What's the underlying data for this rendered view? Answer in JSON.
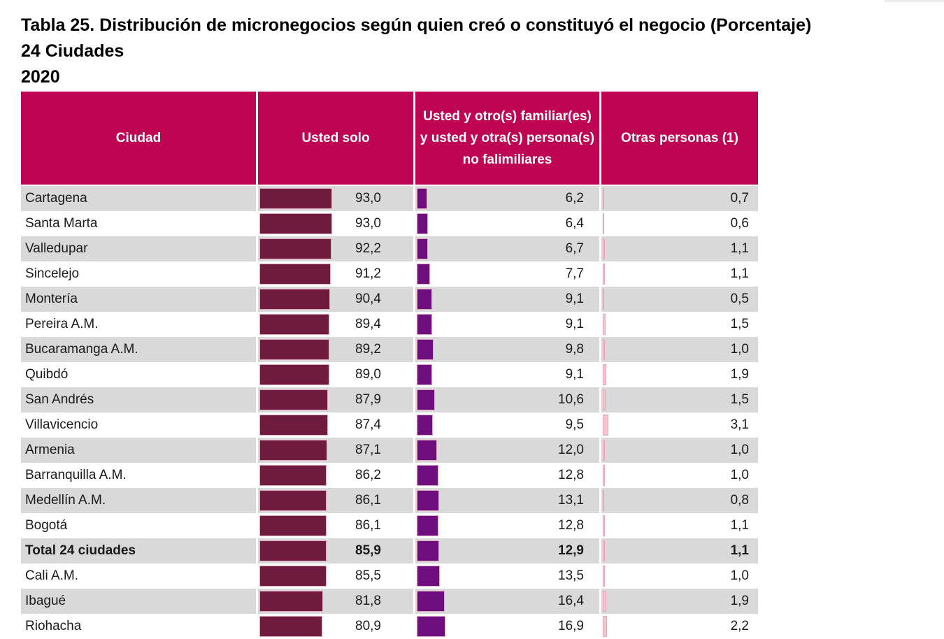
{
  "title": {
    "line1": "Tabla 25. Distribución de micronegocios según quien creó o constituyó el negocio (Porcentaje)",
    "line2": "24 Ciudades",
    "line3": "2020"
  },
  "colors": {
    "header_bg": "#C00454",
    "row_stripe": "#D9D9D9",
    "row_white": "#FFFFFF",
    "bar_usted_solo": "#6E1B3E",
    "bar_familiares": "#6E0D7E",
    "bar_otras": "#F8C3CC",
    "bar_border": "#E3A6BC",
    "header_text": "#FFFFFF",
    "body_text": "#1A1A1A"
  },
  "chart_data": {
    "type": "table",
    "title": "Tabla 25. Distribución de micronegocios según quien creó o constituyó el negocio (Porcentaje)",
    "subtitle": "24 Ciudades",
    "year": "2020",
    "value_unit": "percent, comma decimal with one decimal place",
    "layout_hint": "each numeric cell shows a proportional data-bar at left and a right-aligned value",
    "columns": [
      "Ciudad",
      "Usted solo",
      "Usted y otro(s) familiar(es) y usted y otra(s) persona(s) no falimiliares",
      "Otras personas (1)"
    ],
    "rows": [
      {
        "ciudad": "Cartagena",
        "values": [
          93.0,
          6.2,
          0.7
        ],
        "bold": false
      },
      {
        "ciudad": "Santa Marta",
        "values": [
          93.0,
          6.4,
          0.6
        ],
        "bold": false
      },
      {
        "ciudad": "Valledupar",
        "values": [
          92.2,
          6.7,
          1.1
        ],
        "bold": false
      },
      {
        "ciudad": "Sincelejo",
        "values": [
          91.2,
          7.7,
          1.1
        ],
        "bold": false
      },
      {
        "ciudad": "Montería",
        "values": [
          90.4,
          9.1,
          0.5
        ],
        "bold": false
      },
      {
        "ciudad": "Pereira A.M.",
        "values": [
          89.4,
          9.1,
          1.5
        ],
        "bold": false
      },
      {
        "ciudad": "Bucaramanga A.M.",
        "values": [
          89.2,
          9.8,
          1.0
        ],
        "bold": false
      },
      {
        "ciudad": "Quibdó",
        "values": [
          89.0,
          9.1,
          1.9
        ],
        "bold": false
      },
      {
        "ciudad": "San Andrés",
        "values": [
          87.9,
          10.6,
          1.5
        ],
        "bold": false
      },
      {
        "ciudad": "Villavicencio",
        "values": [
          87.4,
          9.5,
          3.1
        ],
        "bold": false
      },
      {
        "ciudad": "Armenia",
        "values": [
          87.1,
          12.0,
          1.0
        ],
        "bold": false
      },
      {
        "ciudad": "Barranquilla A.M.",
        "values": [
          86.2,
          12.8,
          1.0
        ],
        "bold": false
      },
      {
        "ciudad": "Medellín A.M.",
        "values": [
          86.1,
          13.1,
          0.8
        ],
        "bold": false
      },
      {
        "ciudad": "Bogotá",
        "values": [
          86.1,
          12.8,
          1.1
        ],
        "bold": false
      },
      {
        "ciudad": "Total 24 ciudades",
        "values": [
          85.9,
          12.9,
          1.1
        ],
        "bold": true
      },
      {
        "ciudad": "Cali A.M.",
        "values": [
          85.5,
          13.5,
          1.0
        ],
        "bold": false
      },
      {
        "ciudad": "Ibagué",
        "values": [
          81.8,
          16.4,
          1.9
        ],
        "bold": false
      },
      {
        "ciudad": "Riohacha",
        "values": [
          80.9,
          16.9,
          2.2
        ],
        "bold": false,
        "partially_visible": true
      }
    ]
  }
}
